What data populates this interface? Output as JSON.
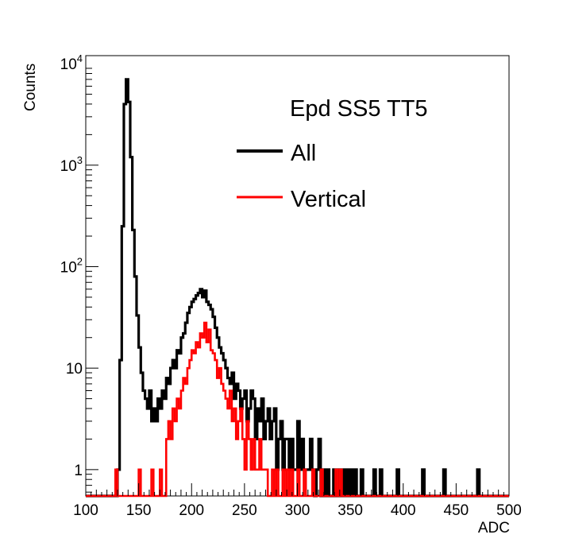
{
  "chart_data": {
    "type": "histogram",
    "title": "Epd SS5 TT5",
    "xlabel": "ADC",
    "ylabel": "Counts",
    "xlim": [
      100,
      500
    ],
    "ylim": [
      0.55,
      12000
    ],
    "yscale": "log",
    "bin_width": 2,
    "grid": false,
    "legend_position": "top-right",
    "x_ticks": [
      "100",
      "150",
      "200",
      "250",
      "300",
      "350",
      "400",
      "450",
      "500"
    ],
    "y_ticks": [
      {
        "base": "1",
        "exp": ""
      },
      {
        "base": "10",
        "exp": ""
      },
      {
        "base": "10",
        "exp": "2"
      },
      {
        "base": "10",
        "exp": "3"
      },
      {
        "base": "10",
        "exp": "4"
      }
    ],
    "series": [
      {
        "name": "All",
        "color": "#000000",
        "points": [
          [
            130,
            1
          ],
          [
            132,
            12
          ],
          [
            134,
            250
          ],
          [
            136,
            4000
          ],
          [
            138,
            7000
          ],
          [
            140,
            4200
          ],
          [
            142,
            1200
          ],
          [
            144,
            230
          ],
          [
            146,
            80
          ],
          [
            148,
            33
          ],
          [
            150,
            16
          ],
          [
            152,
            9
          ],
          [
            154,
            6
          ],
          [
            156,
            5
          ],
          [
            158,
            4
          ],
          [
            160,
            6
          ],
          [
            162,
            3
          ],
          [
            164,
            4
          ],
          [
            166,
            3
          ],
          [
            168,
            5
          ],
          [
            170,
            4
          ],
          [
            172,
            6
          ],
          [
            174,
            5
          ],
          [
            176,
            8
          ],
          [
            178,
            7
          ],
          [
            180,
            10
          ],
          [
            182,
            12
          ],
          [
            184,
            10
          ],
          [
            186,
            15
          ],
          [
            188,
            14
          ],
          [
            190,
            20
          ],
          [
            192,
            22
          ],
          [
            194,
            28
          ],
          [
            196,
            35
          ],
          [
            198,
            40
          ],
          [
            200,
            45
          ],
          [
            202,
            48
          ],
          [
            204,
            52
          ],
          [
            206,
            55
          ],
          [
            208,
            60
          ],
          [
            210,
            50
          ],
          [
            212,
            58
          ],
          [
            214,
            45
          ],
          [
            216,
            42
          ],
          [
            218,
            38
          ],
          [
            220,
            32
          ],
          [
            222,
            25
          ],
          [
            224,
            20
          ],
          [
            226,
            16
          ],
          [
            228,
            14
          ],
          [
            230,
            12
          ],
          [
            232,
            10
          ],
          [
            234,
            8
          ],
          [
            236,
            7
          ],
          [
            238,
            9
          ],
          [
            240,
            5
          ],
          [
            242,
            7
          ],
          [
            244,
            6
          ],
          [
            246,
            4
          ],
          [
            248,
            5
          ],
          [
            250,
            6
          ],
          [
            252,
            3
          ],
          [
            254,
            4
          ],
          [
            256,
            6
          ],
          [
            258,
            5
          ],
          [
            260,
            2
          ],
          [
            262,
            4
          ],
          [
            264,
            3
          ],
          [
            266,
            5
          ],
          [
            268,
            2
          ],
          [
            270,
            3
          ],
          [
            272,
            4
          ],
          [
            274,
            2
          ],
          [
            276,
            3
          ],
          [
            278,
            4
          ],
          [
            280,
            1
          ],
          [
            282,
            2
          ],
          [
            284,
            3
          ],
          [
            286,
            1
          ],
          [
            288,
            2
          ],
          [
            290,
            2
          ],
          [
            292,
            1
          ],
          [
            294,
            2
          ],
          [
            296,
            1
          ],
          [
            298,
            1
          ],
          [
            300,
            3
          ],
          [
            302,
            1
          ],
          [
            304,
            2
          ],
          [
            306,
            1
          ],
          [
            308,
            1
          ],
          [
            310,
            1
          ],
          [
            312,
            2
          ],
          [
            314,
            1
          ],
          [
            318,
            1
          ],
          [
            320,
            2
          ],
          [
            324,
            1
          ],
          [
            328,
            1
          ],
          [
            334,
            1
          ],
          [
            338,
            1
          ],
          [
            342,
            1
          ],
          [
            346,
            1
          ],
          [
            350,
            1
          ],
          [
            354,
            1
          ],
          [
            360,
            1
          ],
          [
            372,
            1
          ],
          [
            378,
            1
          ],
          [
            394,
            1
          ],
          [
            418,
            1
          ],
          [
            438,
            1
          ],
          [
            470,
            1
          ]
        ]
      },
      {
        "name": "Vertical",
        "color": "#ff0000",
        "points": [
          [
            128,
            1
          ],
          [
            150,
            1
          ],
          [
            162,
            1
          ],
          [
            170,
            1
          ],
          [
            176,
            2
          ],
          [
            178,
            3
          ],
          [
            180,
            2
          ],
          [
            182,
            4
          ],
          [
            184,
            3
          ],
          [
            186,
            5
          ],
          [
            188,
            4
          ],
          [
            190,
            6
          ],
          [
            192,
            8
          ],
          [
            194,
            7
          ],
          [
            196,
            10
          ],
          [
            198,
            12
          ],
          [
            200,
            15
          ],
          [
            202,
            14
          ],
          [
            204,
            18
          ],
          [
            206,
            16
          ],
          [
            208,
            22
          ],
          [
            210,
            20
          ],
          [
            212,
            28
          ],
          [
            214,
            18
          ],
          [
            216,
            24
          ],
          [
            218,
            15
          ],
          [
            220,
            14
          ],
          [
            222,
            12
          ],
          [
            224,
            8
          ],
          [
            226,
            10
          ],
          [
            228,
            7
          ],
          [
            230,
            6
          ],
          [
            232,
            5
          ],
          [
            234,
            4
          ],
          [
            236,
            6
          ],
          [
            238,
            3
          ],
          [
            240,
            4
          ],
          [
            242,
            2
          ],
          [
            244,
            3
          ],
          [
            246,
            4
          ],
          [
            248,
            2
          ],
          [
            250,
            1
          ],
          [
            252,
            3
          ],
          [
            254,
            2
          ],
          [
            256,
            1
          ],
          [
            258,
            2
          ],
          [
            260,
            1
          ],
          [
            262,
            1
          ],
          [
            264,
            2
          ],
          [
            266,
            1
          ],
          [
            268,
            1
          ],
          [
            270,
            1
          ],
          [
            276,
            1
          ],
          [
            280,
            1
          ],
          [
            286,
            1
          ],
          [
            290,
            1
          ],
          [
            294,
            1
          ],
          [
            300,
            1
          ],
          [
            306,
            1
          ],
          [
            314,
            1
          ],
          [
            322,
            1
          ],
          [
            336,
            1
          ],
          [
            340,
            1
          ]
        ]
      }
    ]
  }
}
